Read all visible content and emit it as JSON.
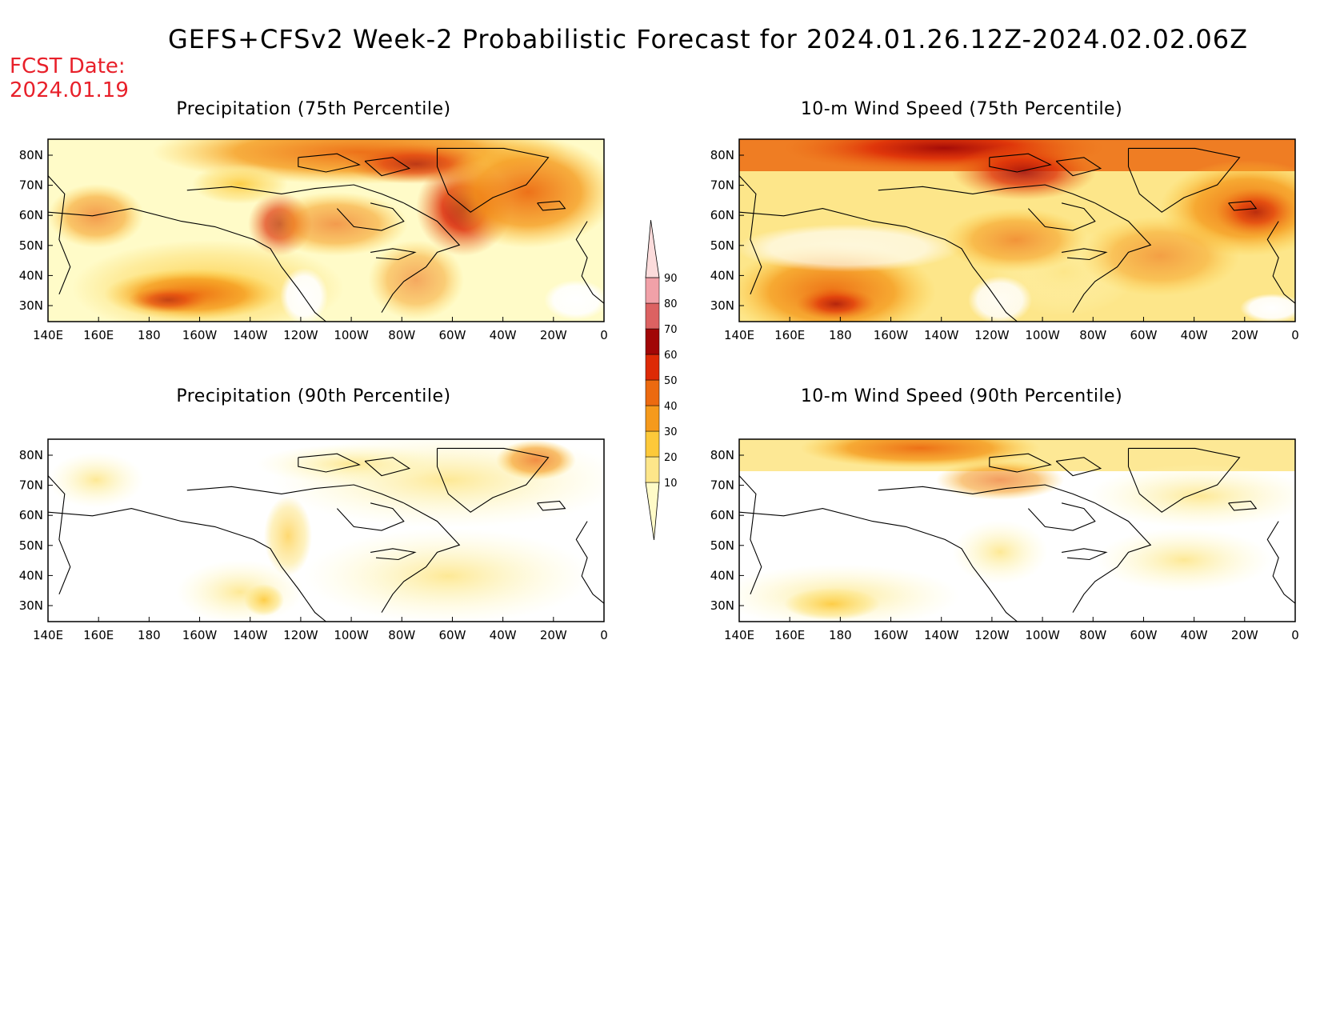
{
  "title": "GEFS+CFSv2 Week-2 Probabilistic Forecast for 2024.01.26.12Z-2024.02.02.06Z",
  "fcst_label": "FCST Date:",
  "fcst_date": "2024.01.19",
  "panels": [
    {
      "title": "Precipitation (75th Percentile)",
      "level": 3
    },
    {
      "title": "10-m Wind Speed (75th Percentile)",
      "level": 4
    },
    {
      "title": "Precipitation (90th Percentile)",
      "level": 1
    },
    {
      "title": "10-m Wind Speed (90th Percentile)",
      "level": 1
    }
  ],
  "lat_labels": [
    "80N",
    "70N",
    "60N",
    "50N",
    "40N",
    "30N"
  ],
  "lon_labels": [
    "140E",
    "160E",
    "180",
    "160W",
    "140W",
    "120W",
    "100W",
    "80W",
    "60W",
    "40W",
    "20W",
    "0"
  ],
  "colorbar": {
    "levels": [
      "10",
      "20",
      "30",
      "40",
      "50",
      "60",
      "70",
      "80",
      "90"
    ],
    "colors": [
      "#fffbc8",
      "#fde68a",
      "#fdc93a",
      "#f59a1c",
      "#ec6a10",
      "#dd2a06",
      "#a10606",
      "#dc6262",
      "#f1a1a8",
      "#fcdcdc"
    ]
  }
}
